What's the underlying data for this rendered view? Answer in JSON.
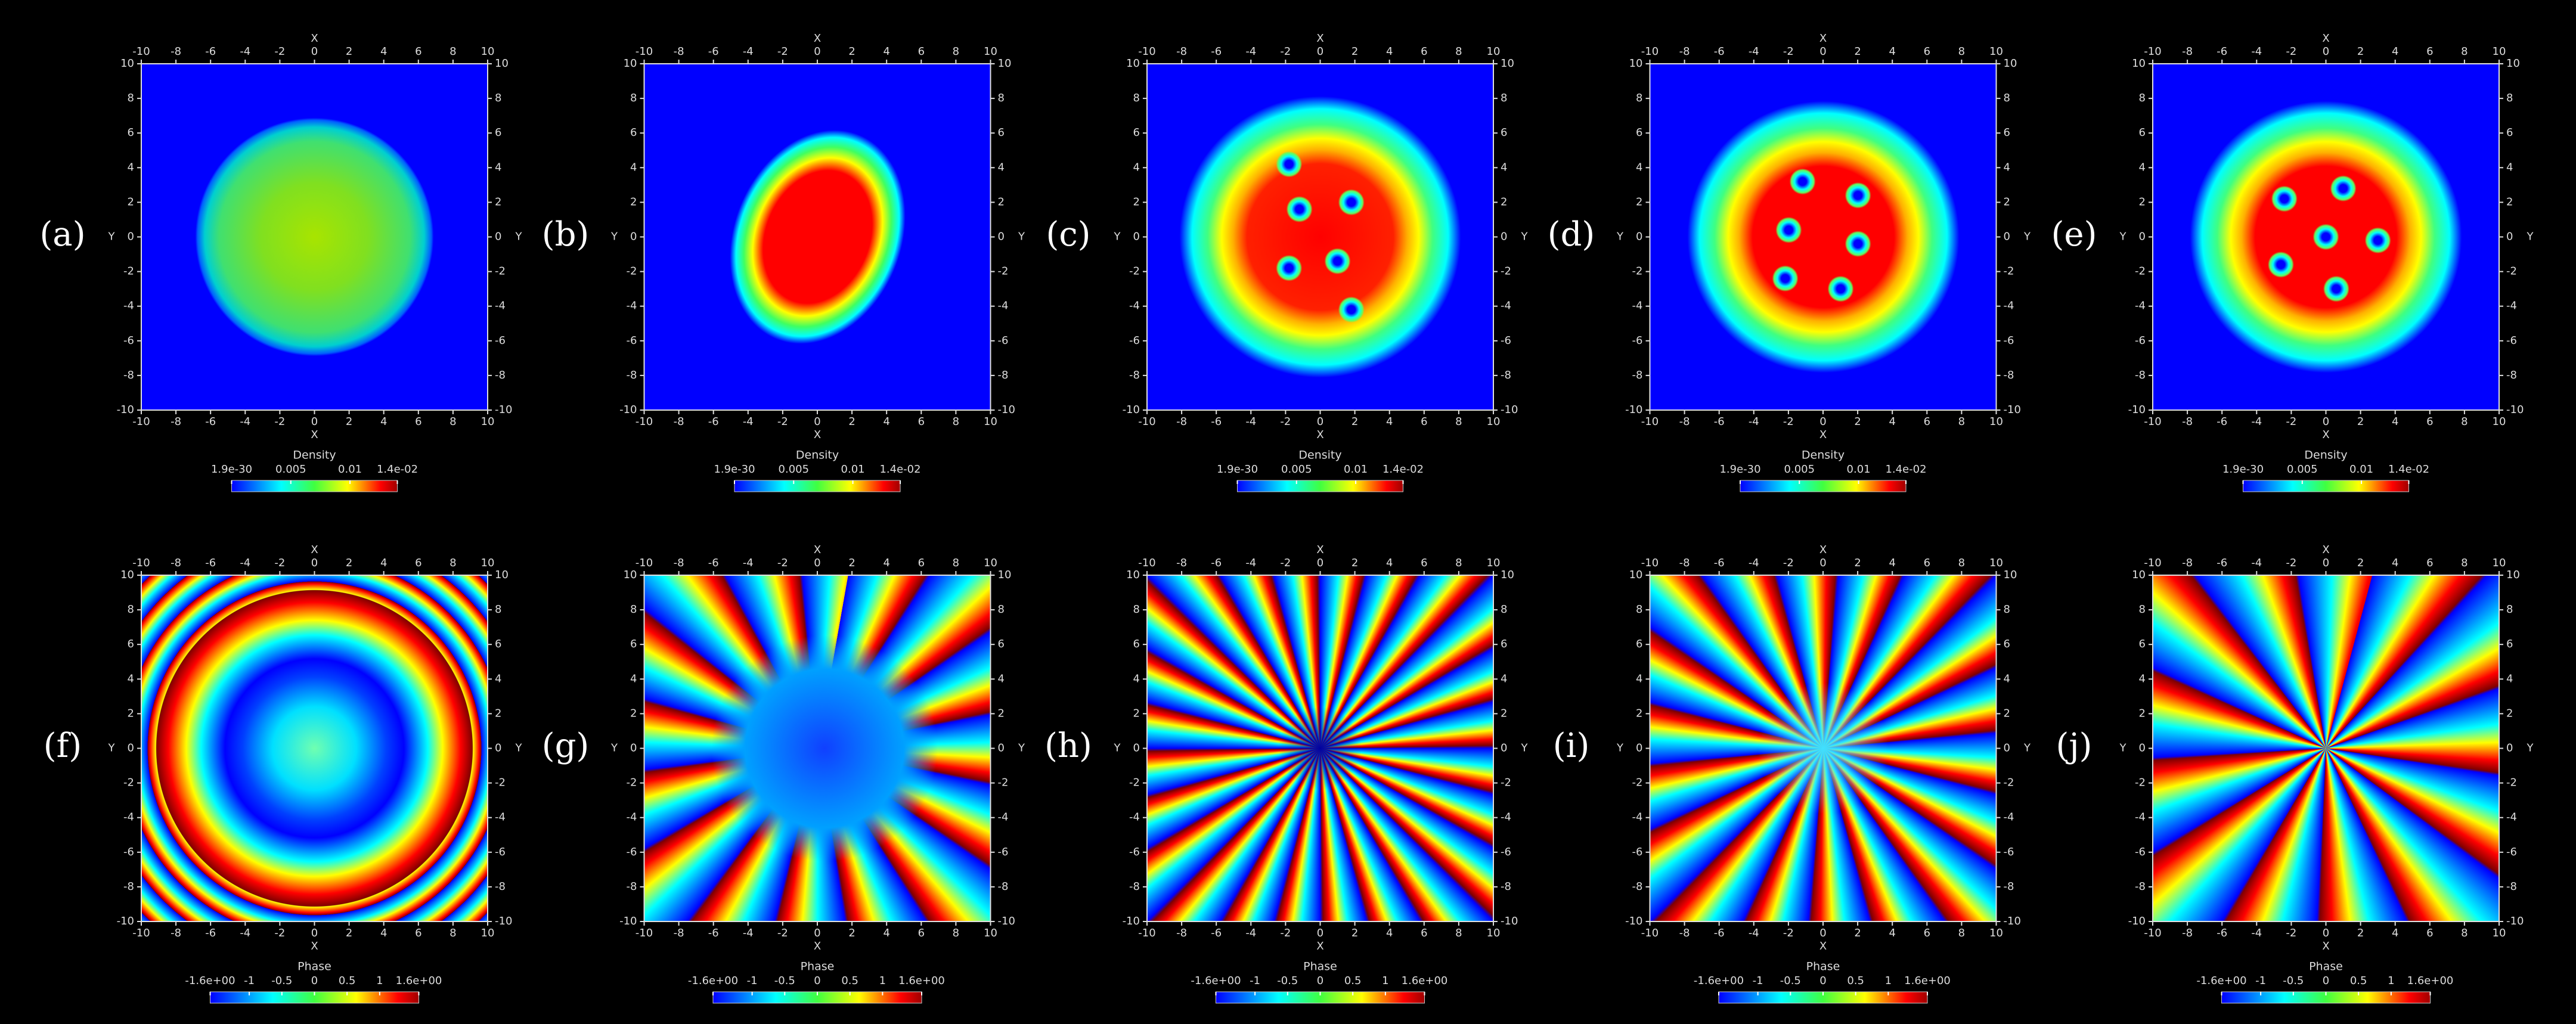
{
  "axes": {
    "x_label": "X",
    "y_label": "Y",
    "ticks": [
      -10,
      -8,
      -6,
      -4,
      -2,
      0,
      2,
      4,
      6,
      8,
      10
    ]
  },
  "rows": [
    {
      "colorbar": {
        "title": "Density",
        "ticks": [
          {
            "value": 1.9e-30,
            "label": "1.9e-30"
          },
          0.005,
          0.01,
          {
            "value": 0.014,
            "label": "1.4e-02"
          }
        ]
      },
      "panels": [
        {
          "label": "(a)"
        },
        {
          "label": "(b)"
        },
        {
          "label": "(c)"
        },
        {
          "label": "(d)"
        },
        {
          "label": "(e)"
        }
      ]
    },
    {
      "colorbar": {
        "title": "Phase",
        "ticks": [
          {
            "value": -1.6,
            "label": "-1.6e+00"
          },
          -1,
          -0.5,
          0,
          0.5,
          1,
          {
            "value": 1.6,
            "label": "1.6e+00"
          }
        ]
      },
      "panels": [
        {
          "label": "(f)"
        },
        {
          "label": "(g)"
        },
        {
          "label": "(h)"
        },
        {
          "label": "(i)"
        },
        {
          "label": "(j)"
        }
      ]
    }
  ]
}
